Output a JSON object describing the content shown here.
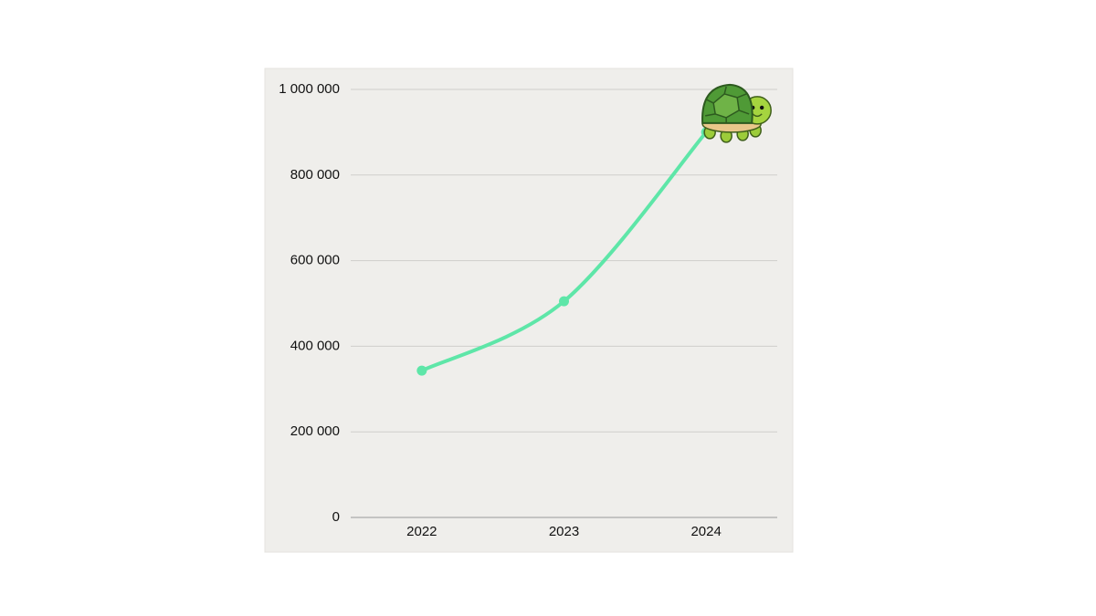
{
  "chart_data": {
    "type": "line",
    "categories": [
      "2022",
      "2023",
      "2024"
    ],
    "values": [
      343000,
      505000,
      900000
    ],
    "color": "#5ee6a8",
    "ylim": [
      0,
      1000000
    ],
    "yticks": [
      0,
      {
        "value": 200000,
        "label": "200 000"
      },
      {
        "value": 400000,
        "label": "400 000"
      },
      {
        "value": 600000,
        "label": "600 000"
      },
      {
        "value": 800000,
        "label": "800 000"
      },
      {
        "value": 1000000,
        "label": "1 000 000"
      }
    ],
    "grid": true
  }
}
